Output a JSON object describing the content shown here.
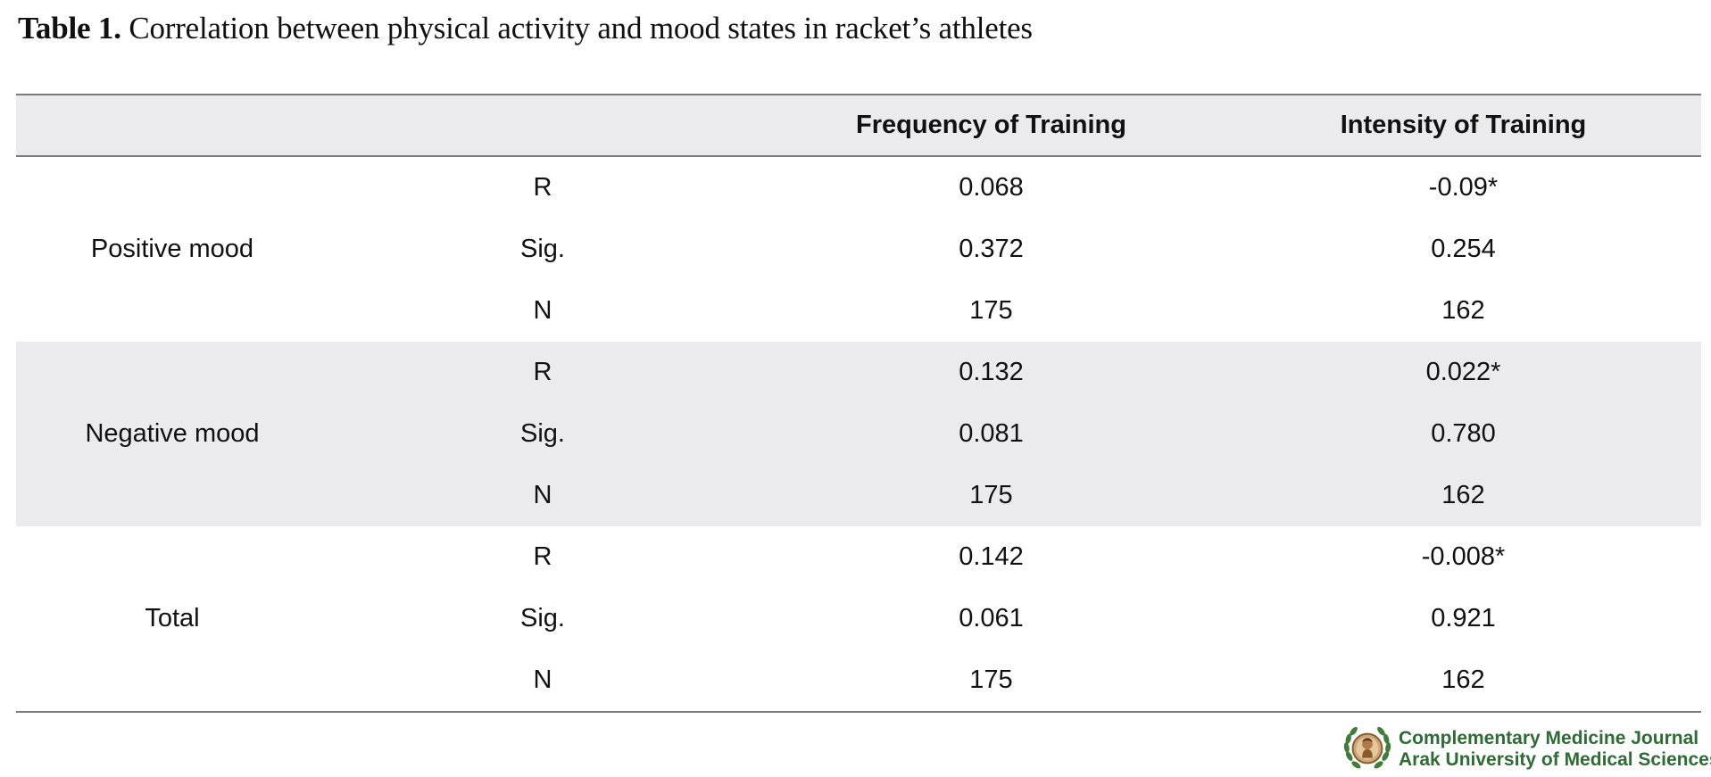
{
  "caption": {
    "label": "Table 1.",
    "text": "Correlation between physical activity and mood states in racket’s athletes"
  },
  "table": {
    "headers": [
      "",
      "",
      "Frequency of Training",
      "Intensity of Training"
    ],
    "groups": [
      {
        "name": "Positive mood",
        "rows": [
          {
            "stat": "R",
            "frequency": "0.068",
            "intensity": "-0.09*"
          },
          {
            "stat": "Sig.",
            "frequency": "0.372",
            "intensity": "0.254"
          },
          {
            "stat": "N",
            "frequency": "175",
            "intensity": "162"
          }
        ]
      },
      {
        "name": "Negative mood",
        "rows": [
          {
            "stat": "R",
            "frequency": "0.132",
            "intensity": "0.022*"
          },
          {
            "stat": "Sig.",
            "frequency": "0.081",
            "intensity": "0.780"
          },
          {
            "stat": "N",
            "frequency": "175",
            "intensity": "162"
          }
        ]
      },
      {
        "name": "Total",
        "rows": [
          {
            "stat": "R",
            "frequency": "0.142",
            "intensity": "-0.008*"
          },
          {
            "stat": "Sig.",
            "frequency": "0.061",
            "intensity": "0.921"
          },
          {
            "stat": "N",
            "frequency": "175",
            "intensity": "162"
          }
        ]
      }
    ]
  },
  "footer": {
    "journal_name": "Complementary Medicine Journal",
    "university": "Arak University of Medical Sciences",
    "logo_icon": "journal-seal-icon",
    "brand_color": "#2f6b35"
  }
}
